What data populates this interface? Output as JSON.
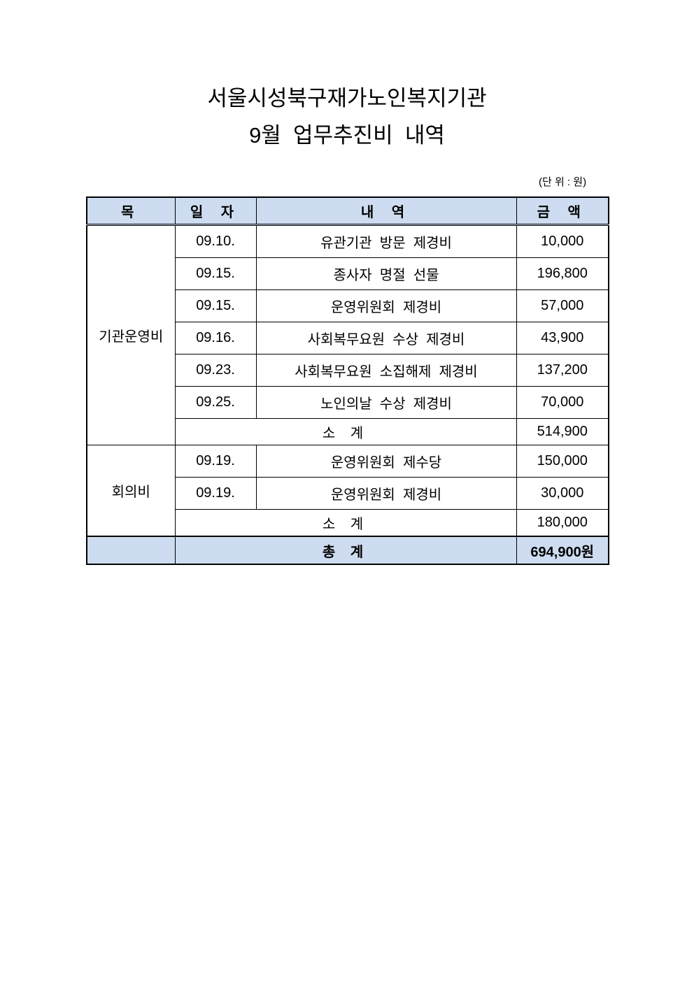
{
  "title_line1": "서울시성북구재가노인복지기관",
  "title_line2": "9월  업무추진비  내역",
  "unit": "(단 위 : 원)",
  "headers": {
    "category": "목",
    "date": "일 자",
    "detail": "내 역",
    "amount": "금 액"
  },
  "groups": [
    {
      "category": "기관운영비",
      "rows": [
        {
          "date": "09.10.",
          "detail": "유관기관  방문  제경비",
          "amount": "10,000"
        },
        {
          "date": "09.15.",
          "detail": "종사자  명절  선물",
          "amount": "196,800"
        },
        {
          "date": "09.15.",
          "detail": "운영위원회  제경비",
          "amount": "57,000"
        },
        {
          "date": "09.16.",
          "detail": "사회복무요원  수상  제경비",
          "amount": "43,900"
        },
        {
          "date": "09.23.",
          "detail": "사회복무요원  소집해제  제경비",
          "amount": "137,200"
        },
        {
          "date": "09.25.",
          "detail": "노인의날  수상  제경비",
          "amount": "70,000"
        }
      ],
      "subtotal_label": "소 계",
      "subtotal": "514,900"
    },
    {
      "category": "회의비",
      "rows": [
        {
          "date": "09.19.",
          "detail": "운영위원회  제수당",
          "amount": "150,000"
        },
        {
          "date": "09.19.",
          "detail": "운영위원회  제경비",
          "amount": "30,000"
        }
      ],
      "subtotal_label": "소 계",
      "subtotal": "180,000"
    }
  ],
  "total_label": "총 계",
  "total": "694,900원",
  "colors": {
    "header_fill": "#cddcf0"
  }
}
